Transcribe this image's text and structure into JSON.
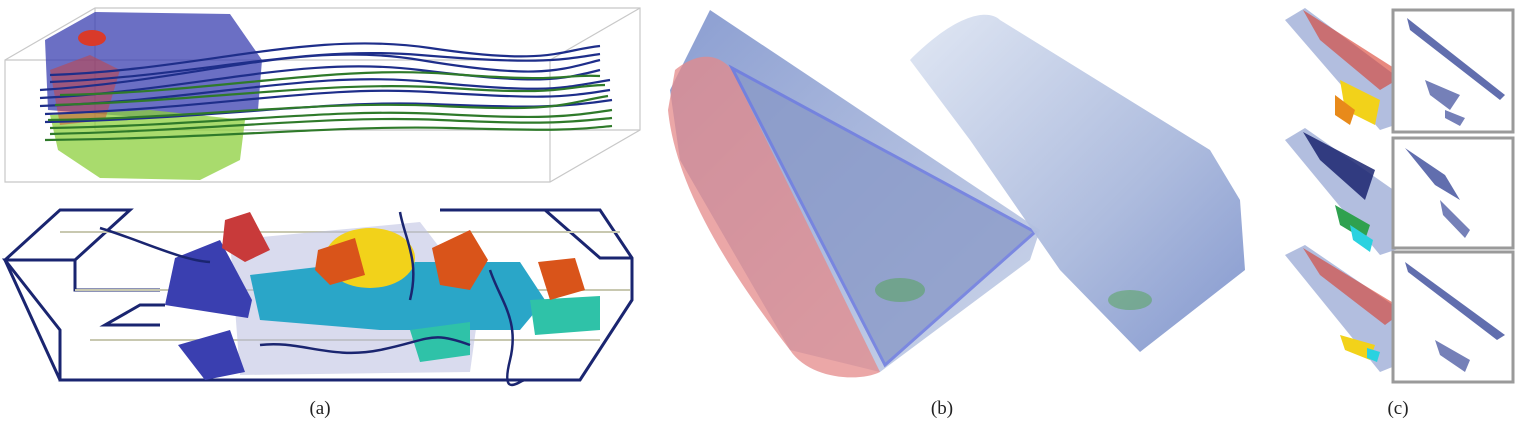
{
  "captions": {
    "a": "(a)",
    "b": "(b)",
    "c": "(c)"
  },
  "colors": {
    "streamline_blue": "#1e2e8a",
    "streamline_green": "#2f7a2a",
    "box_edge": "#c8c8c8",
    "isosurface_blue": "#3a3fb0",
    "isosurface_green": "#8ccf3c",
    "isosurface_red": "#d93a2a",
    "isosurface_yellow": "#f2d21a",
    "isosurface_orange": "#d9541a",
    "isosurface_cyan": "#2aa6c8",
    "isosurface_teal": "#2fc2a8",
    "skeleton_navy": "#1a2570",
    "surface_pale_blue": "#7e93cc",
    "surface_pink": "#e48a8a",
    "inset_frame": "#9a9a9a"
  }
}
